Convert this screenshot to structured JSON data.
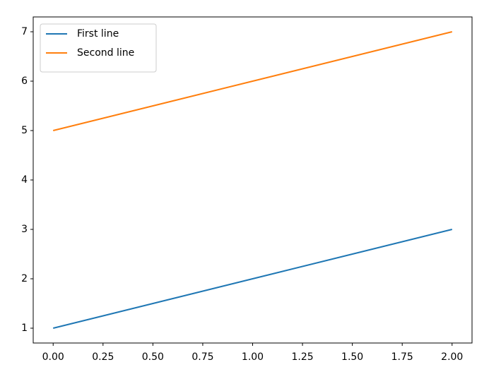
{
  "chart_data": {
    "type": "line",
    "x": [
      0,
      1,
      2
    ],
    "series": [
      {
        "name": "First line",
        "color": "#1f77b4",
        "values": [
          1,
          2,
          3
        ]
      },
      {
        "name": "Second line",
        "color": "#ff7f0e",
        "values": [
          5,
          6,
          7
        ]
      }
    ],
    "xlim": [
      -0.1,
      2.1
    ],
    "xticks": [
      {
        "value": 0,
        "label": "0.00"
      },
      {
        "value": 0.25,
        "label": "0.25"
      },
      {
        "value": 0.5,
        "label": "0.50"
      },
      {
        "value": 0.75,
        "label": "0.75"
      },
      {
        "value": 1,
        "label": "1.00"
      },
      {
        "value": 1.25,
        "label": "1.25"
      },
      {
        "value": 1.5,
        "label": "1.50"
      },
      {
        "value": 1.75,
        "label": "1.75"
      },
      {
        "value": 2,
        "label": "2.00"
      }
    ],
    "ylim": [
      0.7,
      7.3
    ],
    "yticks": [
      1,
      2,
      3,
      4,
      5,
      6,
      7
    ],
    "grid": false,
    "legend": "upper left"
  }
}
